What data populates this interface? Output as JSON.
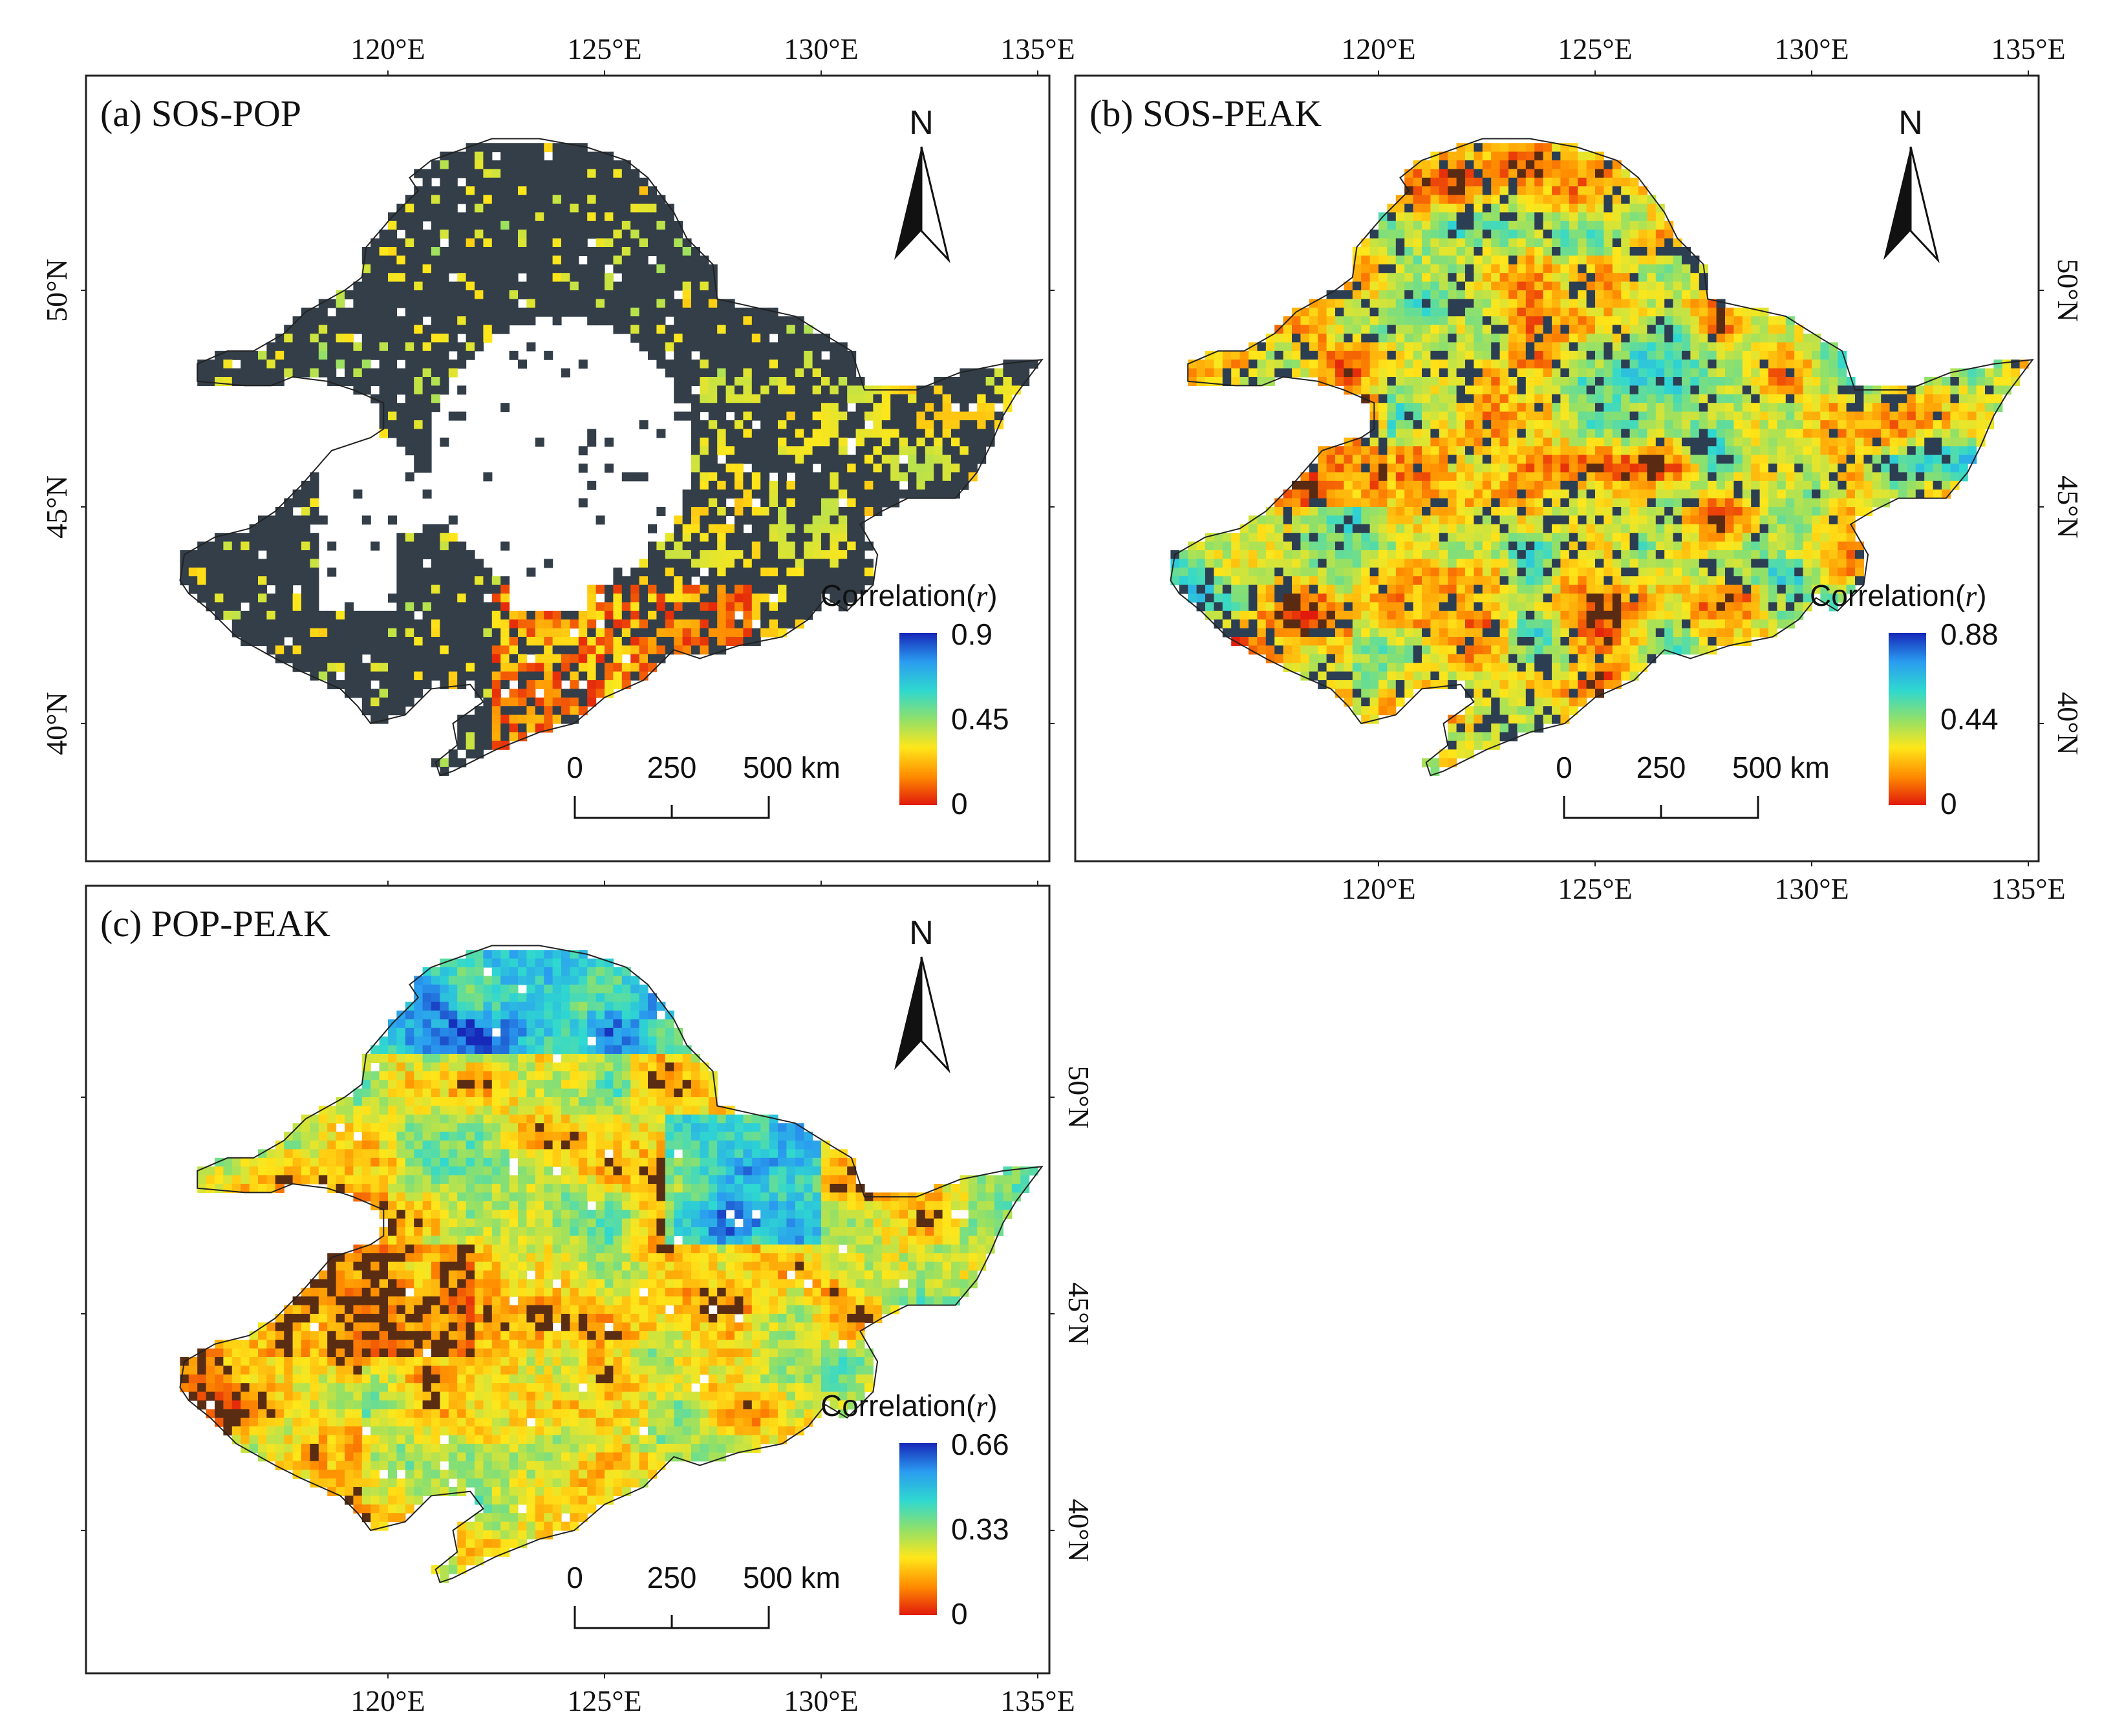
{
  "figure": {
    "panels": [
      {
        "id": "a",
        "title": "(a) SOS-POP",
        "pair": "SOS-POP",
        "colorbar": {
          "label_prefix": "Correlation(",
          "label_var": "r",
          "label_suffix": ")",
          "max": "0.9",
          "mid": "0.45",
          "min": "0"
        },
        "north_label": "N",
        "scale": {
          "t0": "0",
          "t1": "250",
          "t2": "500 km"
        },
        "top_ticks": [
          "120°E",
          "125°E",
          "130°E",
          "135°E"
        ],
        "bottom_ticks": [],
        "right_ticks": [],
        "left_ticks": [
          "50°N",
          "45°N",
          "40°N"
        ],
        "pattern": {
          "background": "Widespread dark slate pixels (non-significant) in north and east; white gaps across the central plain",
          "highlight": "Orange–red low correlations clustered in the south-east (Liaodong)"
        }
      },
      {
        "id": "b",
        "title": "(b) SOS-PEAK",
        "pair": "SOS-PEAK",
        "colorbar": {
          "label_prefix": "Correlation(",
          "label_var": "r",
          "label_suffix": ")",
          "max": "0.88",
          "mid": "0.44",
          "min": "0"
        },
        "north_label": "N",
        "scale": {
          "t0": "0",
          "t1": "250",
          "t2": "500 km"
        },
        "top_ticks": [
          "120°E",
          "125°E",
          "130°E",
          "135°E"
        ],
        "bottom_ticks": [
          "120°E",
          "125°E",
          "130°E",
          "135°E"
        ],
        "right_ticks": [
          "50°N",
          "45°N",
          "40°N"
        ],
        "left_ticks": [],
        "pattern": {
          "background": "Mixed cyan/green correlations with scattered dark non-significant pixels",
          "highlight": "Yellow–orange patches in the west and south-west"
        }
      },
      {
        "id": "c",
        "title": "(c) POP-PEAK",
        "pair": "POP-PEAK",
        "colorbar": {
          "label_prefix": "Correlation(",
          "label_var": "r",
          "label_suffix": ")",
          "max": "0.66",
          "mid": "0.33",
          "min": "0"
        },
        "north_label": "N",
        "scale": {
          "t0": "0",
          "t1": "250",
          "t2": "500 km"
        },
        "top_ticks": [],
        "bottom_ticks": [
          "120°E",
          "125°E",
          "130°E",
          "135°E"
        ],
        "right_ticks": [
          "50°N",
          "45°N",
          "40°N"
        ],
        "left_ticks": [],
        "pattern": {
          "background": "Yellow–green correlations across most of the region",
          "highlight": "Blue high correlations in the north; brown non-significant pixels in the south-west"
        }
      }
    ],
    "colors": {
      "ramp": [
        "#e11a0c",
        "#ff8c00",
        "#ffe61a",
        "#8fe06a",
        "#2fd8d0",
        "#2a9cf0",
        "#1628b8"
      ],
      "nonsig_a": "#333e48",
      "nonsig_b": "#2c3e52",
      "nonsig_c": "#5a2c12"
    }
  }
}
